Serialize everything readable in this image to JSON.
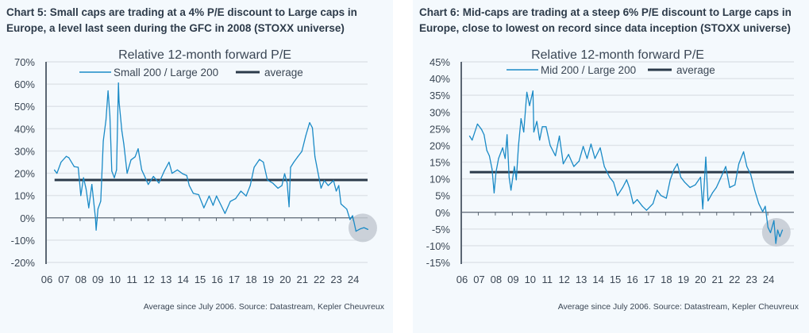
{
  "chart_data": [
    {
      "type": "line",
      "heading": "Chart 5: Small caps are trading at a 4% P/E discount to Large caps in Europe, a level last seen during the GFC in 2008 (STOXX universe)",
      "title": "Relative 12-month forward P/E",
      "ylim": [
        -20,
        70
      ],
      "yticks": [
        -20,
        -10,
        0,
        10,
        20,
        30,
        40,
        50,
        60,
        70
      ],
      "ytick_labels": [
        "-20%",
        "-10%",
        "0%",
        "10%",
        "20%",
        "30%",
        "40%",
        "50%",
        "60%",
        "70%"
      ],
      "xlim": [
        2006,
        2025
      ],
      "xtick_labels": [
        "06",
        "07",
        "08",
        "09",
        "10",
        "11",
        "12",
        "13",
        "14",
        "15",
        "16",
        "17",
        "18",
        "19",
        "20",
        "21",
        "22",
        "23",
        "24"
      ],
      "legend": "top-center",
      "series": [
        {
          "name": "Small 200 / Large 200",
          "color": "#1a8ac6",
          "points": [
            [
              2006.49,
              21.5
            ],
            [
              2006.64,
              20
            ],
            [
              2006.88,
              25
            ],
            [
              2007.19,
              27.6
            ],
            [
              2007.34,
              27
            ],
            [
              2007.65,
              23
            ],
            [
              2007.89,
              22.7
            ],
            [
              2007.96,
              17
            ],
            [
              2008.04,
              10
            ],
            [
              2008.2,
              18
            ],
            [
              2008.35,
              13
            ],
            [
              2008.51,
              4.5
            ],
            [
              2008.69,
              15
            ],
            [
              2008.9,
              0
            ],
            [
              2008.94,
              -5.5
            ],
            [
              2009.05,
              4
            ],
            [
              2009.21,
              7.5
            ],
            [
              2009.36,
              34.5
            ],
            [
              2009.52,
              44
            ],
            [
              2009.64,
              57
            ],
            [
              2009.75,
              46
            ],
            [
              2009.86,
              21
            ],
            [
              2010.01,
              18
            ],
            [
              2010.14,
              21.5
            ],
            [
              2010.25,
              60.5
            ],
            [
              2010.29,
              52
            ],
            [
              2010.45,
              39
            ],
            [
              2010.57,
              33
            ],
            [
              2010.76,
              20
            ],
            [
              2010.99,
              26
            ],
            [
              2011.23,
              27.4
            ],
            [
              2011.41,
              31
            ],
            [
              2011.62,
              21.5
            ],
            [
              2011.77,
              19
            ],
            [
              2012.0,
              15
            ],
            [
              2012.31,
              18.6
            ],
            [
              2012.63,
              15.6
            ],
            [
              2012.94,
              21
            ],
            [
              2013.22,
              25
            ],
            [
              2013.4,
              20
            ],
            [
              2013.71,
              21.5
            ],
            [
              2014.02,
              19.8
            ],
            [
              2014.26,
              19
            ],
            [
              2014.41,
              14.5
            ],
            [
              2014.65,
              11
            ],
            [
              2014.96,
              10.4
            ],
            [
              2015.27,
              4.5
            ],
            [
              2015.58,
              9.8
            ],
            [
              2015.81,
              5.6
            ],
            [
              2016.01,
              9.8
            ],
            [
              2016.28,
              5.6
            ],
            [
              2016.51,
              2
            ],
            [
              2016.82,
              7.4
            ],
            [
              2017.13,
              8.6
            ],
            [
              2017.44,
              12
            ],
            [
              2017.75,
              9.8
            ],
            [
              2017.99,
              14.5
            ],
            [
              2018.22,
              22.7
            ],
            [
              2018.53,
              26.2
            ],
            [
              2018.76,
              25
            ],
            [
              2019.0,
              17
            ],
            [
              2019.31,
              15.6
            ],
            [
              2019.62,
              13.3
            ],
            [
              2019.85,
              14.5
            ],
            [
              2020.01,
              19.8
            ],
            [
              2020.16,
              15.6
            ],
            [
              2020.27,
              5
            ],
            [
              2020.36,
              22.7
            ],
            [
              2020.55,
              25
            ],
            [
              2020.78,
              27.4
            ],
            [
              2021.02,
              29.8
            ],
            [
              2021.25,
              36.8
            ],
            [
              2021.48,
              42.7
            ],
            [
              2021.64,
              40.4
            ],
            [
              2021.79,
              27.4
            ],
            [
              2022.03,
              18
            ],
            [
              2022.15,
              13.3
            ],
            [
              2022.34,
              16.8
            ],
            [
              2022.57,
              14.5
            ],
            [
              2022.88,
              16.8
            ],
            [
              2023.04,
              12
            ],
            [
              2023.19,
              14.5
            ],
            [
              2023.32,
              6.2
            ],
            [
              2023.5,
              5
            ],
            [
              2023.66,
              3.9
            ],
            [
              2023.85,
              -0.8
            ],
            [
              2024.0,
              1
            ],
            [
              2024.2,
              -6
            ],
            [
              2024.44,
              -5
            ],
            [
              2024.67,
              -4.4
            ],
            [
              2024.9,
              -5.2
            ]
          ]
        },
        {
          "name": "average",
          "color": "#2b3a4a",
          "value": 17
        }
      ],
      "highlight": {
        "x": 2024.6,
        "y": -4.5
      },
      "source": "Average since July 2006. Source: Datastream, Kepler Cheuvreux"
    },
    {
      "type": "line",
      "heading": "Chart 6: Mid-caps are trading at a steep 6% P/E discount to Large caps in Europe, close to lowest on record since data inception (STOXX universe)",
      "title": "Relative 12-month forward P/E",
      "ylim": [
        -15,
        45
      ],
      "yticks": [
        -15,
        -10,
        -5,
        0,
        5,
        10,
        15,
        20,
        25,
        30,
        35,
        40,
        45
      ],
      "ytick_labels": [
        "-15%",
        "-10%",
        "-5%",
        "0%",
        "5%",
        "10%",
        "15%",
        "20%",
        "25%",
        "30%",
        "35%",
        "40%",
        "45%"
      ],
      "xlim": [
        2006,
        2025
      ],
      "xtick_labels": [
        "06",
        "07",
        "08",
        "09",
        "10",
        "11",
        "12",
        "13",
        "14",
        "15",
        "16",
        "17",
        "18",
        "19",
        "20",
        "21",
        "22",
        "23",
        "24"
      ],
      "legend": "top-center",
      "series": [
        {
          "name": "Mid 200 / Large 200",
          "color": "#1a8ac6",
          "points": [
            [
              2006.49,
              22.8
            ],
            [
              2006.64,
              21.6
            ],
            [
              2006.95,
              26.4
            ],
            [
              2007.19,
              24.8
            ],
            [
              2007.34,
              23.2
            ],
            [
              2007.5,
              18.5
            ],
            [
              2007.65,
              16.9
            ],
            [
              2007.81,
              12.9
            ],
            [
              2007.93,
              5.8
            ],
            [
              2008.04,
              12.1
            ],
            [
              2008.19,
              16.1
            ],
            [
              2008.43,
              19.3
            ],
            [
              2008.58,
              16.1
            ],
            [
              2008.69,
              23.2
            ],
            [
              2008.81,
              10.5
            ],
            [
              2008.92,
              6.6
            ],
            [
              2009.12,
              13.7
            ],
            [
              2009.23,
              9.7
            ],
            [
              2009.36,
              20
            ],
            [
              2009.51,
              28
            ],
            [
              2009.67,
              24
            ],
            [
              2009.85,
              35.9
            ],
            [
              2010.01,
              31.9
            ],
            [
              2010.21,
              36.3
            ],
            [
              2010.26,
              24
            ],
            [
              2010.44,
              27.2
            ],
            [
              2010.6,
              21.6
            ],
            [
              2010.76,
              25.6
            ],
            [
              2010.98,
              25.6
            ],
            [
              2011.22,
              20
            ],
            [
              2011.53,
              16.9
            ],
            [
              2011.76,
              22.8
            ],
            [
              2011.99,
              14.5
            ],
            [
              2012.3,
              17.3
            ],
            [
              2012.61,
              13.7
            ],
            [
              2012.92,
              15.3
            ],
            [
              2013.16,
              19.7
            ],
            [
              2013.39,
              16.1
            ],
            [
              2013.62,
              20.4
            ],
            [
              2013.85,
              16.1
            ],
            [
              2014.16,
              19.3
            ],
            [
              2014.4,
              13.7
            ],
            [
              2014.71,
              10.5
            ],
            [
              2014.94,
              9
            ],
            [
              2015.17,
              5
            ],
            [
              2015.48,
              7.4
            ],
            [
              2015.71,
              9.7
            ],
            [
              2015.87,
              7.4
            ],
            [
              2016.1,
              2.6
            ],
            [
              2016.33,
              3.8
            ],
            [
              2016.64,
              1.8
            ],
            [
              2016.88,
              0.6
            ],
            [
              2017.26,
              2.6
            ],
            [
              2017.5,
              6.6
            ],
            [
              2017.73,
              5
            ],
            [
              2018.04,
              4.2
            ],
            [
              2018.27,
              9.7
            ],
            [
              2018.5,
              12.9
            ],
            [
              2018.69,
              14.5
            ],
            [
              2018.89,
              10.5
            ],
            [
              2019.12,
              9
            ],
            [
              2019.43,
              7.4
            ],
            [
              2019.74,
              8.2
            ],
            [
              2020.05,
              10.5
            ],
            [
              2020.18,
              1
            ],
            [
              2020.36,
              16.5
            ],
            [
              2020.49,
              3.4
            ],
            [
              2020.75,
              5.8
            ],
            [
              2020.98,
              7.4
            ],
            [
              2021.22,
              10.1
            ],
            [
              2021.53,
              13.7
            ],
            [
              2021.76,
              7.4
            ],
            [
              2022.07,
              8.2
            ],
            [
              2022.3,
              14.5
            ],
            [
              2022.58,
              18.1
            ],
            [
              2022.77,
              13.7
            ],
            [
              2023.0,
              11.3
            ],
            [
              2023.23,
              6.6
            ],
            [
              2023.47,
              2.6
            ],
            [
              2023.7,
              0.2
            ],
            [
              2023.85,
              1.8
            ],
            [
              2024.01,
              -4.5
            ],
            [
              2024.16,
              -6.1
            ],
            [
              2024.36,
              -2.5
            ],
            [
              2024.47,
              -9.3
            ],
            [
              2024.58,
              -5.3
            ],
            [
              2024.71,
              -7.3
            ],
            [
              2024.86,
              -5.3
            ]
          ]
        },
        {
          "name": "average",
          "color": "#2b3a4a",
          "value": 12
        }
      ],
      "highlight": {
        "x": 2024.5,
        "y": -6
      },
      "source": "Average since July 2006. Source: Datastream, Kepler Cheuvreux"
    }
  ]
}
